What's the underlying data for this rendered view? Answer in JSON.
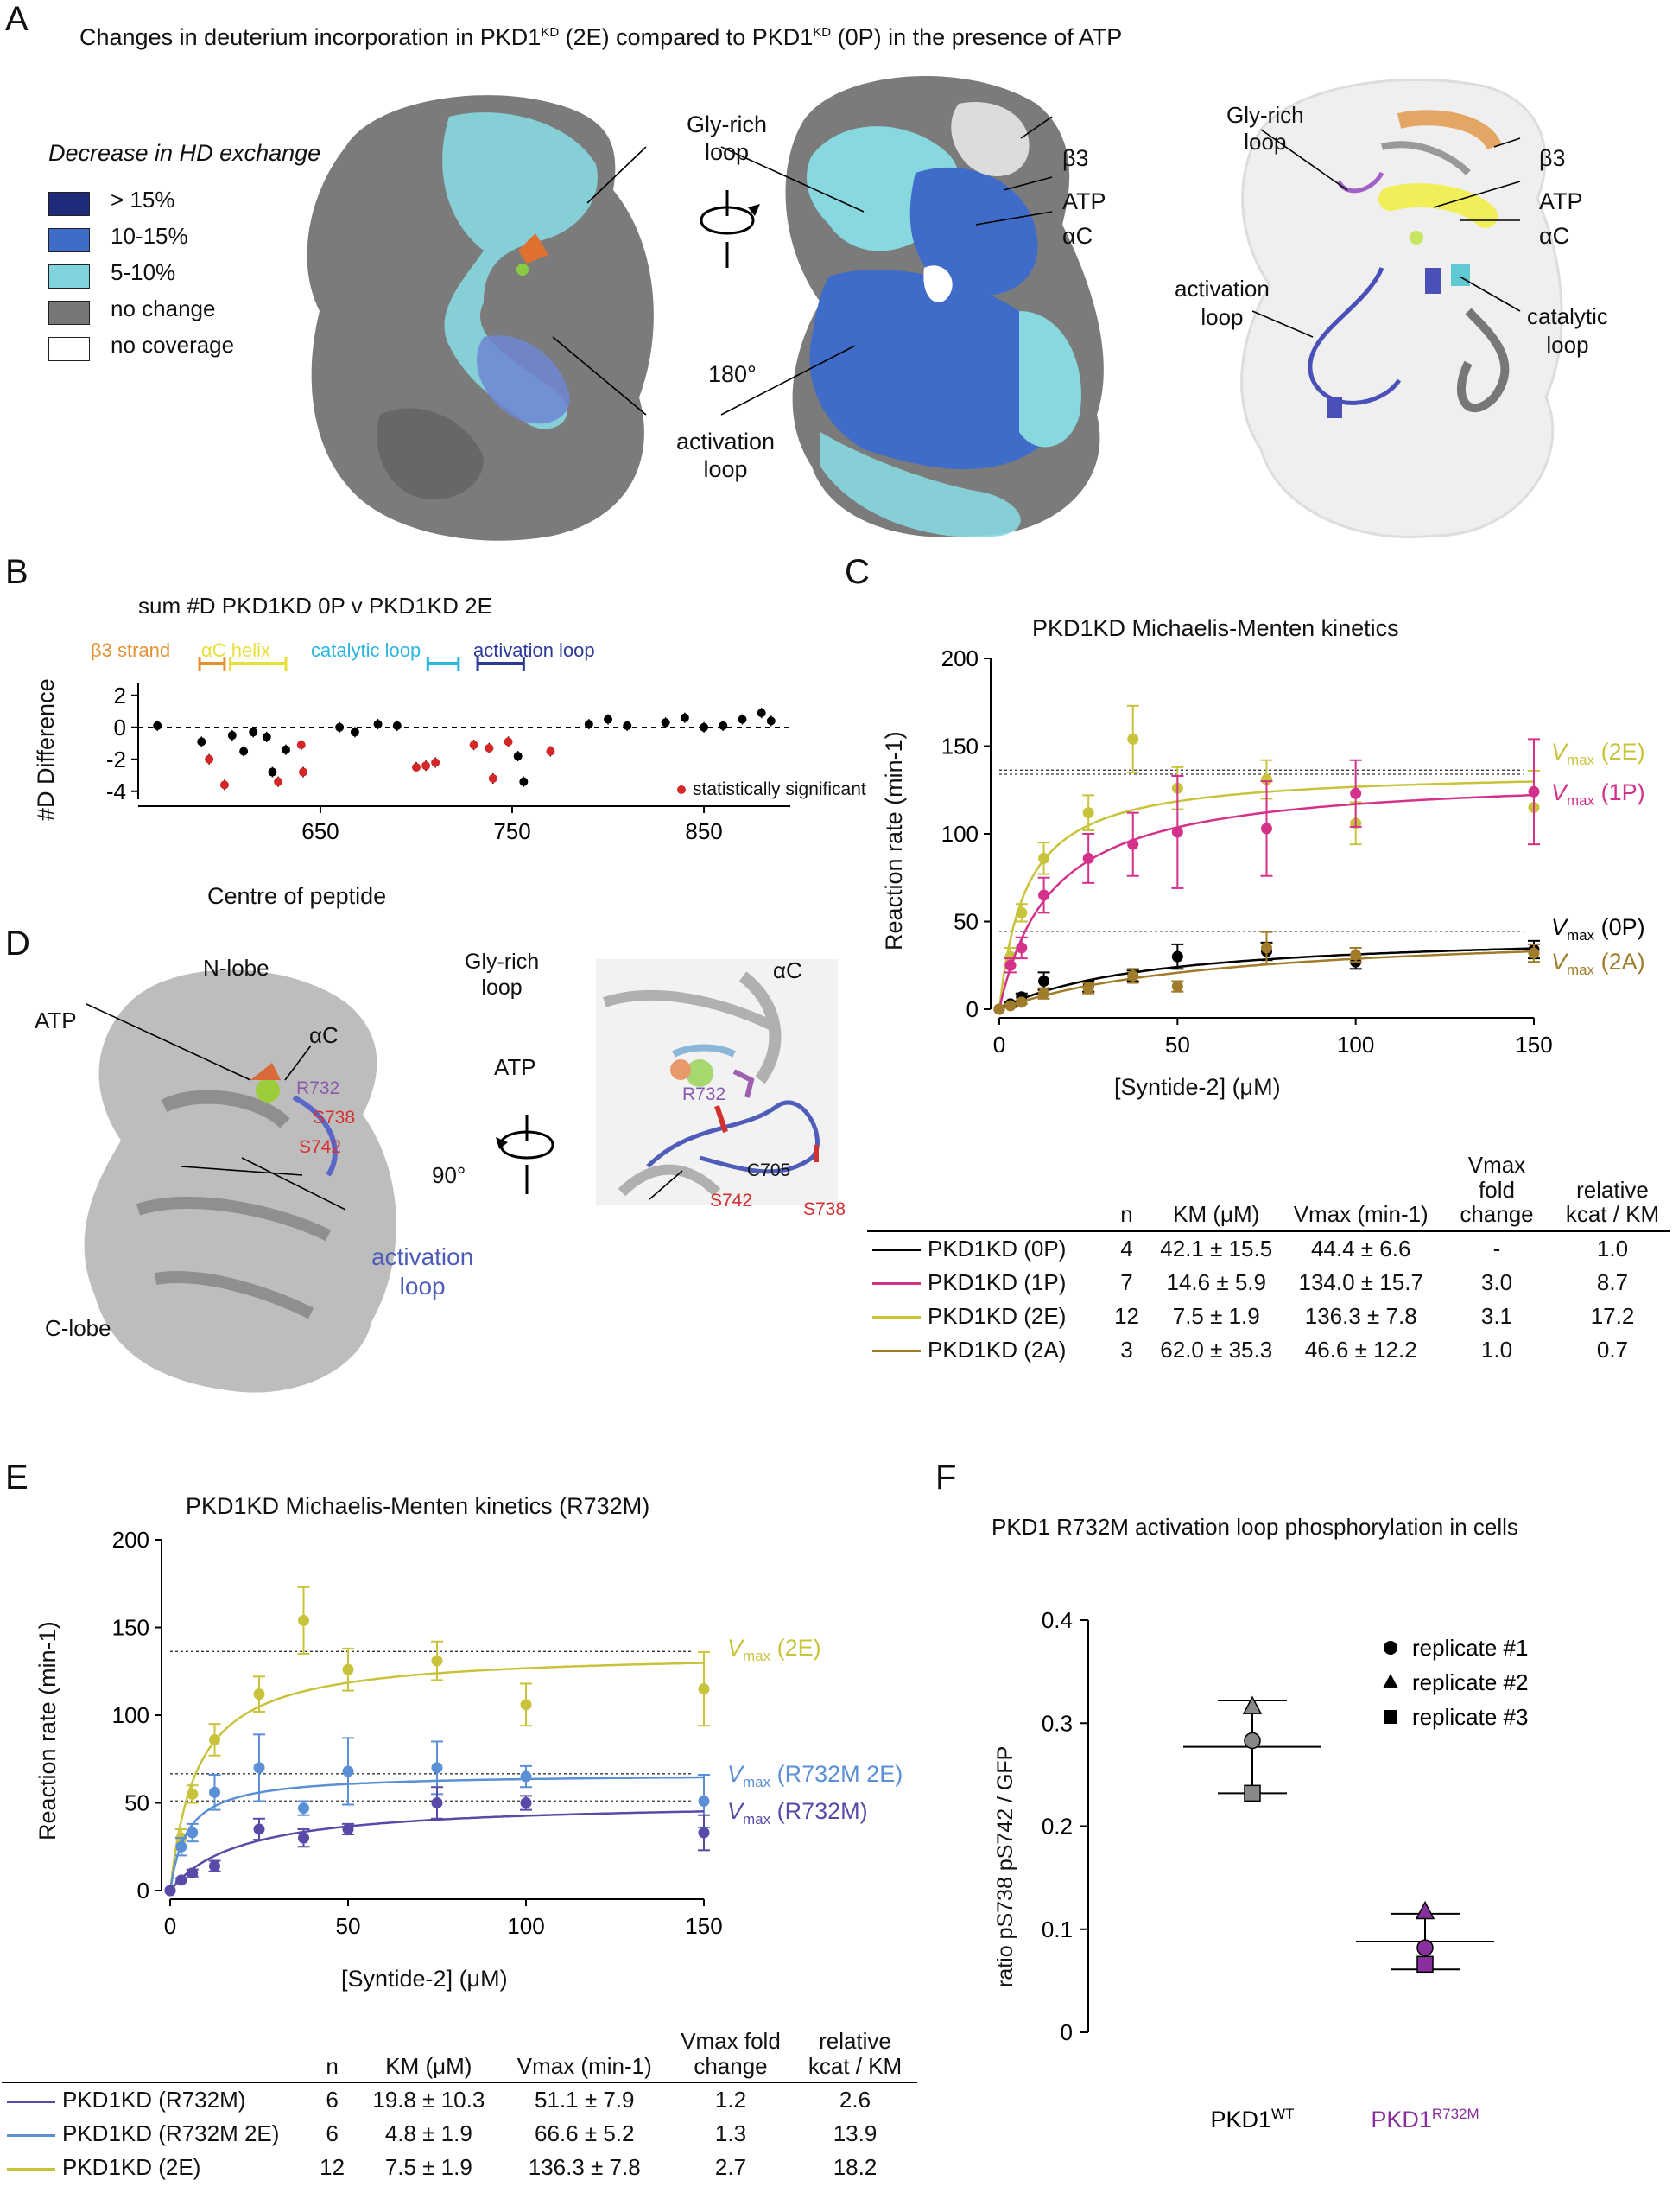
{
  "panels": {
    "A": {
      "letter": "A",
      "title_parts": [
        "Changes in deuterium incorporation in PKD1",
        "KD",
        " (2E) compared to PKD1",
        "KD",
        " (0P) in the presence of ATP"
      ],
      "legend_title": "Decrease in HD exchange",
      "legend": [
        {
          "label": "> 15%",
          "color": "#1f2a7a"
        },
        {
          "label": "10-15%",
          "color": "#3f6cc8"
        },
        {
          "label": "5-10%",
          "color": "#7fd3dd"
        },
        {
          "label": "no change",
          "color": "#777777"
        },
        {
          "label": "no coverage",
          "color": "#ffffff"
        }
      ],
      "labels": {
        "gly_rich": "Gly-rich\nloop",
        "activation": "activation\nloop",
        "rotation": "180°",
        "beta3": "β3",
        "atp": "ATP",
        "alphaC": "αC",
        "catalytic": "catalytic\nloop"
      }
    },
    "B": {
      "letter": "B",
      "title": "sum #D PKD1KD 0P v PKD1KD 2E",
      "regions": [
        {
          "label": "β3 strand",
          "color": "#e39133"
        },
        {
          "label": "αC helix",
          "color": "#e8e03a"
        },
        {
          "label": "catalytic loop",
          "color": "#2bb6e0"
        },
        {
          "label": "activation loop",
          "color": "#2c3a98"
        }
      ],
      "significant_label": "statistically significant",
      "chart_data": {
        "type": "scatter",
        "xlabel": "Centre of peptide",
        "ylabel": "#D Difference",
        "xlim": [
          555,
          895
        ],
        "ylim": [
          -4.5,
          2.8
        ],
        "xticks": [
          650,
          750,
          850
        ],
        "yticks": [
          2,
          0,
          -2,
          -4
        ],
        "significant_color": "#d62728",
        "points": [
          {
            "x": 565,
            "y": 0.1,
            "sig": false
          },
          {
            "x": 588,
            "y": -0.9,
            "sig": false
          },
          {
            "x": 592,
            "y": -2.0,
            "sig": true
          },
          {
            "x": 600,
            "y": -3.6,
            "sig": true
          },
          {
            "x": 604,
            "y": -0.5,
            "sig": false
          },
          {
            "x": 610,
            "y": -1.5,
            "sig": false
          },
          {
            "x": 615,
            "y": -0.3,
            "sig": false
          },
          {
            "x": 622,
            "y": -0.6,
            "sig": false
          },
          {
            "x": 625,
            "y": -2.8,
            "sig": false
          },
          {
            "x": 628,
            "y": -3.4,
            "sig": true
          },
          {
            "x": 632,
            "y": -1.4,
            "sig": false
          },
          {
            "x": 640,
            "y": -1.1,
            "sig": true
          },
          {
            "x": 641,
            "y": -2.8,
            "sig": true
          },
          {
            "x": 660,
            "y": 0.0,
            "sig": false
          },
          {
            "x": 668,
            "y": -0.3,
            "sig": false
          },
          {
            "x": 680,
            "y": 0.2,
            "sig": false
          },
          {
            "x": 690,
            "y": 0.1,
            "sig": false
          },
          {
            "x": 700,
            "y": -2.5,
            "sig": true
          },
          {
            "x": 705,
            "y": -2.4,
            "sig": true
          },
          {
            "x": 710,
            "y": -2.2,
            "sig": true
          },
          {
            "x": 730,
            "y": -1.1,
            "sig": true
          },
          {
            "x": 738,
            "y": -1.3,
            "sig": true
          },
          {
            "x": 740,
            "y": -3.2,
            "sig": true
          },
          {
            "x": 748,
            "y": -0.9,
            "sig": true
          },
          {
            "x": 753,
            "y": -1.8,
            "sig": false
          },
          {
            "x": 756,
            "y": -3.4,
            "sig": false
          },
          {
            "x": 770,
            "y": -1.5,
            "sig": true
          },
          {
            "x": 790,
            "y": 0.2,
            "sig": false
          },
          {
            "x": 800,
            "y": 0.5,
            "sig": false
          },
          {
            "x": 810,
            "y": 0.1,
            "sig": false
          },
          {
            "x": 830,
            "y": 0.3,
            "sig": false
          },
          {
            "x": 840,
            "y": 0.6,
            "sig": false
          },
          {
            "x": 850,
            "y": 0.0,
            "sig": false
          },
          {
            "x": 860,
            "y": 0.1,
            "sig": false
          },
          {
            "x": 870,
            "y": 0.5,
            "sig": false
          },
          {
            "x": 880,
            "y": 0.9,
            "sig": false
          },
          {
            "x": 885,
            "y": 0.4,
            "sig": false
          }
        ]
      }
    },
    "C": {
      "letter": "C",
      "title": "PKD1KD Michaelis-Menten kinetics",
      "chart_data": {
        "type": "line",
        "xlabel": "[Syntide-2] (μM)",
        "ylabel": "Reaction rate (min-1)",
        "xlim": [
          0,
          150
        ],
        "ylim": [
          0,
          200
        ],
        "xticks": [
          0,
          50,
          100,
          150
        ],
        "yticks": [
          0,
          50,
          100,
          150,
          200
        ],
        "x": [
          0,
          3.125,
          6.25,
          12.5,
          25,
          37.5,
          50,
          75,
          100,
          150
        ],
        "series": [
          {
            "name": "Vmax (2E)",
            "color": "#c9c33c",
            "vmax": 136.3,
            "km": 7.5,
            "values": [
              0,
              30,
              55,
              86,
              112,
              154,
              126,
              131,
              106,
              115
            ],
            "errors": [
              0,
              5,
              5,
              9,
              10,
              19,
              12,
              11,
              12,
              21
            ]
          },
          {
            "name": "Vmax (1P)",
            "color": "#d4328a",
            "vmax": 134.0,
            "km": 14.6,
            "values": [
              0,
              25,
              35,
              65,
              86,
              94,
              101,
              103,
              123,
              124
            ],
            "errors": [
              0,
              4,
              6,
              10,
              14,
              18,
              32,
              27,
              19,
              30
            ]
          },
          {
            "name": "Vmax (0P)",
            "color": "#000000",
            "vmax": 44.4,
            "km": 42.1,
            "values": [
              0,
              3,
              7,
              16,
              13,
              19,
              30,
              33,
              27,
              34
            ],
            "errors": [
              0,
              1,
              2,
              5,
              3,
              3,
              7,
              5,
              4,
              5
            ]
          },
          {
            "name": "Vmax (2A)",
            "color": "#a07c2a",
            "vmax": 46.6,
            "km": 62.0,
            "values": [
              0,
              2,
              4,
              9,
              12,
              19,
              13,
              35,
              31,
              32
            ],
            "errors": [
              0,
              1,
              1,
              3,
              3,
              4,
              3,
              9,
              4,
              5
            ]
          }
        ],
        "reference_lines": [
          136.3,
          134.0,
          44.4
        ]
      },
      "table": {
        "headers": [
          "n",
          "KM (μM)",
          "Vmax (min-1)",
          "Vmax fold change",
          "relative kcat / KM"
        ],
        "rows": [
          {
            "label": "PKD1KD (0P)",
            "color": "#000000",
            "cells": [
              "4",
              "42.1  ± 15.5",
              "44.4  ± 6.6",
              "-",
              "1.0"
            ]
          },
          {
            "label": "PKD1KD (1P)",
            "color": "#d4328a",
            "cells": [
              "7",
              "14.6  ± 5.9",
              "134.0  ± 15.7",
              "3.0",
              "8.7"
            ]
          },
          {
            "label": "PKD1KD (2E)",
            "color": "#c9c33c",
            "cells": [
              "12",
              "7.5  ± 1.9",
              "136.3  ± 7.8",
              "3.1",
              "17.2"
            ]
          },
          {
            "label": "PKD1KD (2A)",
            "color": "#a07c2a",
            "cells": [
              "3",
              "62.0  ± 35.3",
              "46.6  ± 12.2",
              "1.0",
              "0.7"
            ]
          }
        ]
      }
    },
    "D": {
      "letter": "D",
      "labels": {
        "n_lobe": "N-lobe",
        "c_lobe": "C-lobe",
        "alphaC": "αC",
        "atp": "ATP",
        "r732": "R732",
        "s738": "S738",
        "s742": "S742",
        "rotation": "90°",
        "activation": "activation\nloop",
        "gly_rich": "Gly-rich\nloop",
        "c705": "C705"
      }
    },
    "E": {
      "letter": "E",
      "title": "PKD1KD Michaelis-Menten kinetics (R732M)",
      "chart_data": {
        "type": "line",
        "xlabel": "[Syntide-2] (μM)",
        "ylabel": "Reaction rate (min-1)",
        "xlim": [
          0,
          150
        ],
        "ylim": [
          0,
          200
        ],
        "xticks": [
          0,
          50,
          100,
          150
        ],
        "yticks": [
          0,
          50,
          100,
          150,
          200
        ],
        "x": [
          0,
          3.125,
          6.25,
          12.5,
          25,
          37.5,
          50,
          75,
          100,
          150
        ],
        "series": [
          {
            "name": "Vmax (2E)",
            "color": "#c9c33c",
            "vmax": 136.3,
            "km": 7.5,
            "values": [
              0,
              30,
              55,
              86,
              112,
              154,
              126,
              131,
              106,
              115
            ],
            "errors": [
              0,
              5,
              5,
              9,
              10,
              19,
              12,
              11,
              12,
              21
            ]
          },
          {
            "name": "Vmax (R732M 2E)",
            "color": "#5b8fd6",
            "vmax": 66.6,
            "km": 4.8,
            "values": [
              0,
              25,
              33,
              56,
              70,
              47,
              68,
              70,
              65,
              51
            ],
            "errors": [
              0,
              5,
              5,
              10,
              19,
              4,
              19,
              15,
              6,
              15
            ]
          },
          {
            "name": "Vmax (R732M)",
            "color": "#5a4aa8",
            "vmax": 51.1,
            "km": 19.8,
            "values": [
              0,
              6,
              10,
              14,
              35,
              30,
              35,
              50,
              50,
              33
            ],
            "errors": [
              0,
              1,
              2,
              3,
              6,
              5,
              3,
              9,
              4,
              10
            ]
          }
        ],
        "reference_lines": [
          136.3,
          66.6,
          51.1
        ]
      },
      "table": {
        "headers": [
          "n",
          "KM (μM)",
          "Vmax (min-1)",
          "Vmax fold change",
          "relative kcat / KM"
        ],
        "rows": [
          {
            "label": "PKD1KD (R732M)",
            "color": "#5a4aa8",
            "cells": [
              "6",
              "19.8 ± 10.3",
              "51.1 ± 7.9",
              "1.2",
              "2.6"
            ]
          },
          {
            "label": "PKD1KD (R732M 2E)",
            "color": "#5b8fd6",
            "cells": [
              "6",
              "4.8 ± 1.9",
              "66.6 ± 5.2",
              "1.3",
              "13.9"
            ]
          },
          {
            "label": "PKD1KD (2E)",
            "color": "#c9c33c",
            "cells": [
              "12",
              "7.5 ± 1.9",
              "136.3 ± 7.8",
              "2.7",
              "18.2"
            ]
          }
        ]
      }
    },
    "F": {
      "letter": "F",
      "title": "PKD1 R732M activation loop phosphorylation in cells",
      "chart_data": {
        "type": "scatter",
        "ylabel": "ratio pS738 pS742 / GFP",
        "ylim": [
          0,
          0.4
        ],
        "yticks": [
          0,
          0.1,
          0.2,
          0.3,
          0.4
        ],
        "categories": [
          "PKD1WT",
          "PKD1R732M"
        ],
        "category_colors": [
          "#888888",
          "#8a2f9e"
        ],
        "replicates": [
          {
            "name": "replicate #1",
            "shape": "circle",
            "values": [
              0.283,
              0.082
            ]
          },
          {
            "name": "replicate #2",
            "shape": "triangle",
            "values": [
              0.316,
              0.117
            ]
          },
          {
            "name": "replicate #3",
            "shape": "square",
            "values": [
              0.232,
              0.066
            ]
          }
        ],
        "means": [
          0.277,
          0.088
        ],
        "errors": [
          0.045,
          0.027
        ]
      }
    }
  }
}
